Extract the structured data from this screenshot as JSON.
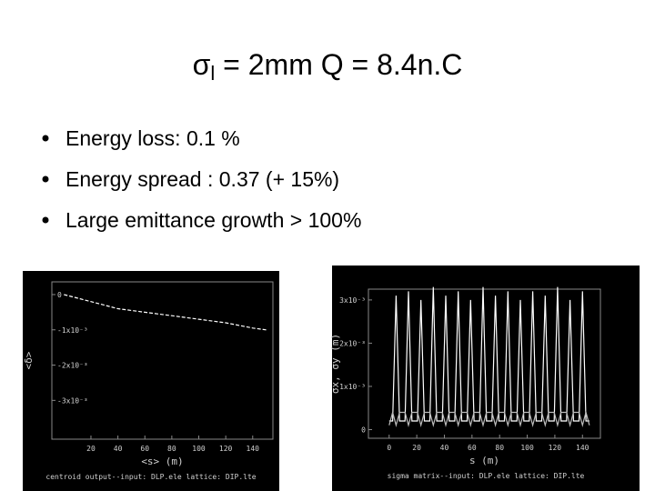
{
  "title": {
    "symbol": "σ",
    "sub": "l",
    "rest": " = 2mm  Q = 8.4n.C"
  },
  "bullets": [
    "Energy loss: 0.1 %",
    "Energy spread : 0.37 (+ 15%)",
    "Large emittance growth  > 100%"
  ],
  "chart_data": [
    {
      "type": "line",
      "x_label": "<s>  (m)",
      "y_label": "<δ>",
      "caption": "centroid output--input: DLP.ele  lattice: DIP.lte",
      "xlim": [
        -9,
        155
      ],
      "xticks": [
        20,
        40,
        60,
        80,
        100,
        120,
        140
      ],
      "ylim": [
        -0.0041,
        0.00036
      ],
      "yticks": [
        0,
        {
          "value": -0.001,
          "label": "-1x10⁻³"
        },
        {
          "value": -0.002,
          "label": "-2x10⁻³"
        },
        {
          "value": -0.003,
          "label": "-3x10⁻³"
        }
      ],
      "x": [
        0,
        20,
        40,
        60,
        80,
        100,
        120,
        140,
        150
      ],
      "series": [
        {
          "color": "#ffffff",
          "dashed": true,
          "values": [
            0,
            -0.0002,
            -0.0004,
            -0.0005,
            -0.0006,
            -0.0007,
            -0.0008,
            -0.00095,
            -0.001
          ]
        }
      ]
    },
    {
      "type": "line",
      "x_label": "s  (m)",
      "y_label": "σx, σy (m)",
      "caption": "sigma matrix--input: DLP.ele  lattice: DIP.lte",
      "xlim": [
        -15,
        153
      ],
      "xticks": [
        0,
        20,
        40,
        60,
        80,
        100,
        120,
        140
      ],
      "ylim": [
        -0.0002,
        0.00325
      ],
      "yticks": [
        0,
        {
          "value": 0.001,
          "label": "1x10⁻³"
        },
        {
          "value": 0.002,
          "label": "2x10⁻³"
        },
        {
          "value": 0.003,
          "label": "3x10⁻³"
        }
      ],
      "x": [
        0,
        2.5,
        5,
        7.5,
        11.5,
        14,
        16.5,
        20.5,
        23,
        25.5,
        29.5,
        32,
        34.5,
        38.5,
        41,
        43.5,
        47.5,
        50,
        52.5,
        56.5,
        59,
        61.5,
        65.5,
        68,
        70.5,
        74.5,
        77,
        79.5,
        83.5,
        86,
        88.5,
        92.5,
        95,
        97.5,
        101.5,
        104,
        106.5,
        110.5,
        113,
        115.5,
        119.5,
        122,
        124.5,
        128.5,
        131,
        133.5,
        137.5,
        140,
        142.5,
        145
      ],
      "series": [
        {
          "color": "#ffffff",
          "values": [
            0.0002,
            0.0002,
            0.0031,
            0.0002,
            0.0002,
            0.0032,
            0.0002,
            0.0002,
            0.003,
            0.0002,
            0.0002,
            0.0033,
            0.0002,
            0.0002,
            0.0031,
            0.0002,
            0.0002,
            0.0032,
            0.0002,
            0.0002,
            0.003,
            0.0002,
            0.0002,
            0.0033,
            0.0002,
            0.0002,
            0.0031,
            0.0002,
            0.0002,
            0.0032,
            0.0002,
            0.0002,
            0.003,
            0.0002,
            0.0002,
            0.0032,
            0.0002,
            0.0002,
            0.0031,
            0.0002,
            0.0002,
            0.0033,
            0.0002,
            0.0002,
            0.003,
            0.0002,
            0.0002,
            0.0032,
            0.0002,
            0.0002
          ]
        },
        {
          "color": "#bbbbbb",
          "values": [
            0.0001,
            0.0004,
            0.0001,
            0.0004,
            0.0004,
            0.0001,
            0.0004,
            0.0004,
            0.0001,
            0.0004,
            0.0004,
            0.0001,
            0.0004,
            0.0004,
            0.0001,
            0.0004,
            0.0004,
            0.0001,
            0.0004,
            0.0004,
            0.0001,
            0.0004,
            0.0004,
            0.0001,
            0.0004,
            0.0004,
            0.0001,
            0.0004,
            0.0004,
            0.0001,
            0.0004,
            0.0004,
            0.0001,
            0.0004,
            0.0004,
            0.0001,
            0.0004,
            0.0004,
            0.0001,
            0.0004,
            0.0004,
            0.0001,
            0.0004,
            0.0004,
            0.0001,
            0.0004,
            0.0004,
            0.0001,
            0.0004,
            0.0001
          ]
        }
      ]
    }
  ]
}
